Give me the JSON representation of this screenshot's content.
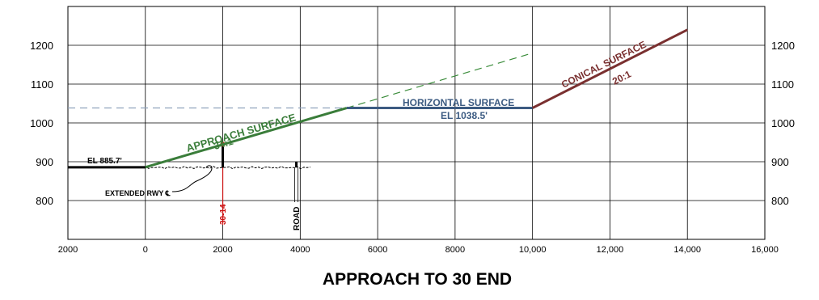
{
  "title": "APPROACH TO 30 END",
  "colors": {
    "approach": "#3a7d3a",
    "horizontal": "#3c5b82",
    "conical": "#7a3030",
    "extension": "#3a8c3a",
    "horizontal_dashed": "#8fa3bd",
    "runway_end": "#cc1111",
    "grid": "#000000"
  },
  "labels": {
    "approach_surface": "APPROACH SURFACE",
    "approach_slope": "34:1",
    "horizontal_surface": "HORIZONTAL SURFACE",
    "horizontal_elev": "EL 1038.5'",
    "conical_surface": "CONICAL SURFACE",
    "conical_slope": "20:1",
    "runway_elev": "EL 885.7'",
    "extended_rwy": "EXTENDED RWY ℄",
    "runway_end": "30-14",
    "road": "ROAD"
  },
  "chart_data": {
    "type": "line",
    "title": "APPROACH TO 30 END",
    "x_ticks": [
      "2000",
      "0",
      "2000",
      "4000",
      "6000",
      "8000",
      "10,000",
      "12,000",
      "14,000",
      "16,000"
    ],
    "y_ticks_left": [
      "1200",
      "1100",
      "1000",
      "900",
      "800"
    ],
    "y_ticks_right": [
      "1200",
      "1100",
      "1000",
      "900",
      "800"
    ],
    "xlim": [
      -2000,
      16000
    ],
    "ylim": [
      700,
      1300
    ],
    "grid": true,
    "series": [
      {
        "name": "APPROACH SURFACE",
        "x": [
          0,
          5200
        ],
        "y": [
          885.7,
          1038.5
        ]
      },
      {
        "name": "HORIZONTAL SURFACE",
        "x": [
          5200,
          10000
        ],
        "y": [
          1038.5,
          1038.5
        ]
      },
      {
        "name": "CONICAL SURFACE",
        "x": [
          10000,
          14000
        ],
        "y": [
          1038.5,
          1240
        ]
      }
    ],
    "approach_extension": {
      "x": [
        5200,
        10000
      ],
      "y": [
        1038.5,
        1180
      ]
    },
    "horizontal_extension": {
      "x": [
        -2000,
        5200
      ],
      "y": [
        1038.5,
        1038.5
      ]
    },
    "runway": {
      "x": [
        -2000,
        0
      ],
      "y": [
        885.7,
        885.7
      ]
    },
    "runway_end_marker": {
      "x": 2000,
      "y_top": 945,
      "y_bottom": 885
    },
    "road_marker": {
      "x": 3900,
      "y_top": 900,
      "y_bottom": 885
    }
  }
}
